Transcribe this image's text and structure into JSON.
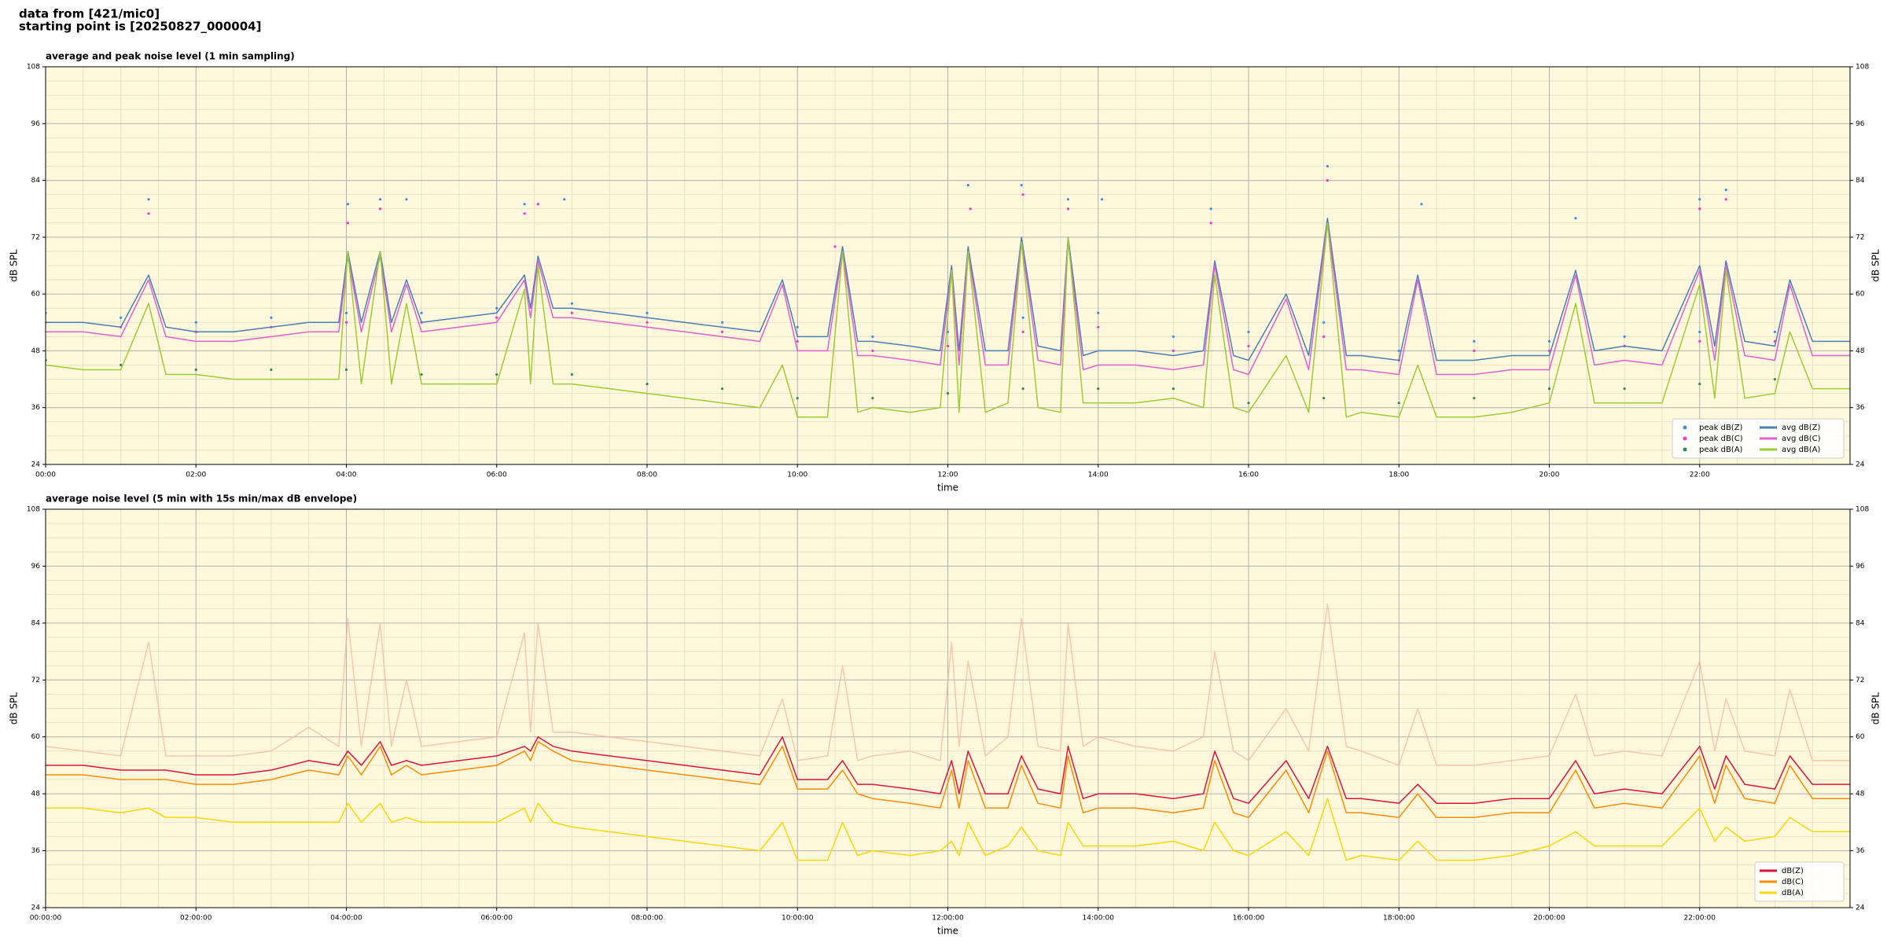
{
  "header": [
    "data from [421/mic0]",
    "starting point is [20250827_000004]"
  ],
  "chart_data": [
    {
      "type": "line",
      "title": "average and peak noise level (1 min sampling)",
      "xlabel": "time",
      "ylabel": "dB SPL",
      "background": "#fff8dc",
      "grid": true,
      "minor_grid": true,
      "legend": "lower right",
      "legend_columns": 2,
      "xlim": [
        0,
        24
      ],
      "ylim": [
        24,
        108
      ],
      "xticks": [
        {
          "value": 0,
          "label": "00:00"
        },
        {
          "value": 2,
          "label": "02:00"
        },
        {
          "value": 4,
          "label": "04:00"
        },
        {
          "value": 6,
          "label": "06:00"
        },
        {
          "value": 8,
          "label": "08:00"
        },
        {
          "value": 10,
          "label": "10:00"
        },
        {
          "value": 12,
          "label": "12:00"
        },
        {
          "value": 14,
          "label": "14:00"
        },
        {
          "value": 16,
          "label": "16:00"
        },
        {
          "value": 18,
          "label": "18:00"
        },
        {
          "value": 20,
          "label": "20:00"
        },
        {
          "value": 22,
          "label": "22:00"
        }
      ],
      "yticks": [
        24,
        36,
        48,
        60,
        72,
        84,
        96,
        108
      ],
      "x": [
        0,
        0.5,
        1,
        1.37,
        1.6,
        2,
        2.5,
        3,
        3.5,
        3.9,
        4.02,
        4.2,
        4.45,
        4.6,
        4.8,
        5,
        5.5,
        6,
        6.37,
        6.45,
        6.55,
        6.75,
        7,
        7.5,
        8,
        8.5,
        9,
        9.5,
        9.8,
        10,
        10.4,
        10.6,
        10.8,
        11,
        11.5,
        11.9,
        12.05,
        12.15,
        12.27,
        12.5,
        12.8,
        12.98,
        13.2,
        13.5,
        13.6,
        13.8,
        14,
        14.5,
        15,
        15.4,
        15.55,
        15.8,
        16,
        16.5,
        16.8,
        17.05,
        17.3,
        17.5,
        18,
        18.25,
        18.5,
        19,
        19.5,
        20,
        20.35,
        20.6,
        21,
        21.5,
        22,
        22.2,
        22.35,
        22.6,
        23,
        23.2,
        23.5,
        24
      ],
      "series": [
        {
          "name": "peak dB(Z)",
          "color": "#3a8ee6",
          "style": "marker",
          "x": [
            0,
            1,
            2,
            3,
            4,
            5,
            6,
            7,
            8,
            9,
            10,
            11,
            12,
            13,
            14,
            15,
            16,
            17,
            18,
            19,
            20,
            21,
            22,
            23,
            1.37,
            4.02,
            4.45,
            4.8,
            6.37,
            6.9,
            12.27,
            12.98,
            13.6,
            14.05,
            15.5,
            17.05,
            18.3,
            20.35,
            22,
            22.35
          ],
          "values": [
            56,
            55,
            54,
            55,
            56,
            56,
            57,
            58,
            56,
            54,
            53,
            51,
            52,
            55,
            56,
            51,
            52,
            54,
            48,
            50,
            50,
            51,
            52,
            52,
            80,
            79,
            80,
            80,
            79,
            80,
            83,
            83,
            80,
            80,
            78,
            87,
            79,
            76,
            80,
            82
          ]
        },
        {
          "name": "peak dB(C)",
          "color": "#ff33cc",
          "style": "marker",
          "x": [
            0,
            1,
            2,
            3,
            4,
            5,
            6,
            7,
            8,
            9,
            10,
            11,
            12,
            13,
            14,
            15,
            16,
            17,
            18,
            19,
            20,
            21,
            22,
            23,
            1.37,
            4.02,
            4.45,
            6.37,
            6.55,
            10.5,
            12.3,
            13,
            13.6,
            15.5,
            17.05,
            22,
            22.35
          ],
          "values": [
            54,
            53,
            52,
            53,
            54,
            54,
            55,
            56,
            54,
            52,
            50,
            48,
            49,
            52,
            53,
            48,
            49,
            51,
            46,
            48,
            48,
            49,
            50,
            50,
            77,
            75,
            78,
            77,
            79,
            70,
            78,
            81,
            78,
            75,
            84,
            78,
            80
          ]
        },
        {
          "name": "peak dB(A)",
          "color": "#2e8b57",
          "style": "marker",
          "x": [
            0,
            1,
            2,
            3,
            4,
            5,
            6,
            7,
            8,
            9,
            10,
            11,
            12,
            13,
            14,
            15,
            16,
            17,
            18,
            19,
            20,
            21,
            22,
            23
          ],
          "values": [
            46,
            45,
            44,
            44,
            44,
            43,
            43,
            43,
            41,
            40,
            38,
            38,
            39,
            40,
            40,
            40,
            37,
            38,
            37,
            38,
            40,
            40,
            41,
            42
          ]
        },
        {
          "name": "avg dB(Z)",
          "color": "#4a7fb5",
          "style": "line",
          "values": [
            54,
            54,
            53,
            64,
            53,
            52,
            52,
            53,
            54,
            54,
            69,
            54,
            69,
            54,
            63,
            54,
            55,
            56,
            64,
            57,
            68,
            57,
            57,
            56,
            55,
            54,
            53,
            52,
            63,
            51,
            51,
            70,
            50,
            50,
            49,
            48,
            66,
            48,
            70,
            48,
            48,
            72,
            49,
            48,
            72,
            47,
            48,
            48,
            47,
            48,
            67,
            47,
            46,
            60,
            47,
            76,
            47,
            47,
            46,
            64,
            46,
            46,
            47,
            47,
            65,
            48,
            49,
            48,
            66,
            49,
            67,
            50,
            49,
            63,
            50,
            50
          ]
        },
        {
          "name": "avg dB(C)",
          "color": "#e060d0",
          "style": "line",
          "values": [
            52,
            52,
            51,
            63,
            51,
            50,
            50,
            51,
            52,
            52,
            68,
            52,
            68,
            52,
            62,
            52,
            53,
            54,
            63,
            55,
            67,
            55,
            55,
            54,
            53,
            52,
            51,
            50,
            62,
            48,
            48,
            69,
            47,
            47,
            46,
            45,
            65,
            45,
            69,
            45,
            45,
            71,
            46,
            45,
            71,
            44,
            45,
            45,
            44,
            45,
            66,
            44,
            43,
            59,
            44,
            75,
            44,
            44,
            43,
            63,
            43,
            43,
            44,
            44,
            64,
            45,
            46,
            45,
            65,
            46,
            66,
            47,
            46,
            62,
            47,
            47
          ]
        },
        {
          "name": "avg dB(A)",
          "color": "#9acd32",
          "style": "line",
          "values": [
            45,
            44,
            44,
            58,
            43,
            43,
            42,
            42,
            42,
            42,
            69,
            41,
            69,
            41,
            58,
            41,
            41,
            41,
            61,
            41,
            66,
            41,
            41,
            40,
            39,
            38,
            37,
            36,
            45,
            34,
            34,
            69,
            35,
            36,
            35,
            36,
            65,
            35,
            69,
            35,
            37,
            71,
            36,
            35,
            72,
            37,
            37,
            37,
            38,
            36,
            64,
            36,
            35,
            47,
            35,
            75,
            34,
            35,
            34,
            45,
            34,
            34,
            35,
            37,
            58,
            37,
            37,
            37,
            62,
            38,
            65,
            38,
            39,
            52,
            40,
            40
          ]
        }
      ]
    },
    {
      "type": "line",
      "title": "average noise level (5 min with 15s min/max dB envelope)",
      "xlabel": "time",
      "ylabel": "dB SPL",
      "background": "#fff8dc",
      "grid": true,
      "minor_grid": true,
      "legend": "lower right",
      "legend_columns": 1,
      "xlim": [
        0,
        24
      ],
      "ylim": [
        24,
        108
      ],
      "xticks": [
        {
          "value": 0,
          "label": "00:00:00"
        },
        {
          "value": 2,
          "label": "02:00:00"
        },
        {
          "value": 4,
          "label": "04:00:00"
        },
        {
          "value": 6,
          "label": "06:00:00"
        },
        {
          "value": 8,
          "label": "08:00:00"
        },
        {
          "value": 10,
          "label": "10:00:00"
        },
        {
          "value": 12,
          "label": "12:00:00"
        },
        {
          "value": 14,
          "label": "14:00:00"
        },
        {
          "value": 16,
          "label": "16:00:00"
        },
        {
          "value": 18,
          "label": "18:00:00"
        },
        {
          "value": 20,
          "label": "20:00:00"
        },
        {
          "value": 22,
          "label": "22:00:00"
        }
      ],
      "yticks": [
        24,
        36,
        48,
        60,
        72,
        84,
        96,
        108
      ],
      "x": [
        0,
        0.5,
        1,
        1.37,
        1.6,
        2,
        2.5,
        3,
        3.5,
        3.9,
        4.02,
        4.2,
        4.45,
        4.6,
        4.8,
        5,
        5.5,
        6,
        6.37,
        6.45,
        6.55,
        6.75,
        7,
        7.5,
        8,
        8.5,
        9,
        9.5,
        9.8,
        10,
        10.4,
        10.6,
        10.8,
        11,
        11.5,
        11.9,
        12.05,
        12.15,
        12.27,
        12.5,
        12.8,
        12.98,
        13.2,
        13.5,
        13.6,
        13.8,
        14,
        14.5,
        15,
        15.4,
        15.55,
        15.8,
        16,
        16.5,
        16.8,
        17.05,
        17.3,
        17.5,
        18,
        18.25,
        18.5,
        19,
        19.5,
        20,
        20.35,
        20.6,
        21,
        21.5,
        22,
        22.2,
        22.35,
        22.6,
        23,
        23.2,
        23.5,
        24
      ],
      "envelope": {
        "color": "#f4b49a",
        "values": [
          58,
          57,
          56,
          80,
          56,
          56,
          56,
          57,
          62,
          58,
          85,
          58,
          84,
          58,
          72,
          58,
          59,
          60,
          82,
          61,
          84,
          61,
          61,
          60,
          59,
          58,
          57,
          56,
          68,
          55,
          56,
          75,
          55,
          56,
          57,
          55,
          80,
          58,
          76,
          56,
          60,
          85,
          58,
          57,
          84,
          58,
          60,
          58,
          57,
          60,
          78,
          57,
          55,
          66,
          57,
          88,
          58,
          57,
          54,
          66,
          54,
          54,
          55,
          56,
          69,
          56,
          57,
          56,
          76,
          57,
          68,
          57,
          56,
          70,
          55,
          55
        ]
      },
      "series": [
        {
          "name": "dB(Z)",
          "color": "#dc143c",
          "style": "line",
          "values": [
            54,
            54,
            53,
            53,
            53,
            52,
            52,
            53,
            55,
            54,
            57,
            54,
            59,
            54,
            55,
            54,
            55,
            56,
            58,
            57,
            60,
            58,
            57,
            56,
            55,
            54,
            53,
            52,
            60,
            51,
            51,
            55,
            50,
            50,
            49,
            48,
            55,
            48,
            57,
            48,
            48,
            56,
            49,
            48,
            58,
            47,
            48,
            48,
            47,
            48,
            57,
            47,
            46,
            55,
            47,
            58,
            47,
            47,
            46,
            50,
            46,
            46,
            47,
            47,
            55,
            48,
            49,
            48,
            58,
            49,
            56,
            50,
            49,
            56,
            50,
            50
          ]
        },
        {
          "name": "dB(C)",
          "color": "#ff8c00",
          "style": "line",
          "values": [
            52,
            52,
            51,
            51,
            51,
            50,
            50,
            51,
            53,
            52,
            56,
            52,
            58,
            52,
            54,
            52,
            53,
            54,
            57,
            55,
            59,
            57,
            55,
            54,
            53,
            52,
            51,
            50,
            58,
            49,
            49,
            53,
            48,
            47,
            46,
            45,
            53,
            45,
            55,
            45,
            45,
            54,
            46,
            45,
            56,
            44,
            45,
            45,
            44,
            45,
            55,
            44,
            43,
            53,
            44,
            57,
            44,
            44,
            43,
            48,
            43,
            43,
            44,
            44,
            53,
            45,
            46,
            45,
            56,
            46,
            54,
            47,
            46,
            54,
            47,
            47
          ]
        },
        {
          "name": "dB(A)",
          "color": "#ffd700",
          "style": "line",
          "values": [
            45,
            45,
            44,
            45,
            43,
            43,
            42,
            42,
            42,
            42,
            46,
            42,
            46,
            42,
            43,
            42,
            42,
            42,
            45,
            42,
            46,
            42,
            41,
            40,
            39,
            38,
            37,
            36,
            42,
            34,
            34,
            42,
            35,
            36,
            35,
            36,
            38,
            35,
            42,
            35,
            37,
            41,
            36,
            35,
            42,
            37,
            37,
            37,
            38,
            36,
            42,
            36,
            35,
            40,
            35,
            47,
            34,
            35,
            34,
            38,
            34,
            34,
            35,
            37,
            40,
            37,
            37,
            37,
            45,
            38,
            41,
            38,
            39,
            43,
            40,
            40
          ]
        }
      ]
    }
  ]
}
